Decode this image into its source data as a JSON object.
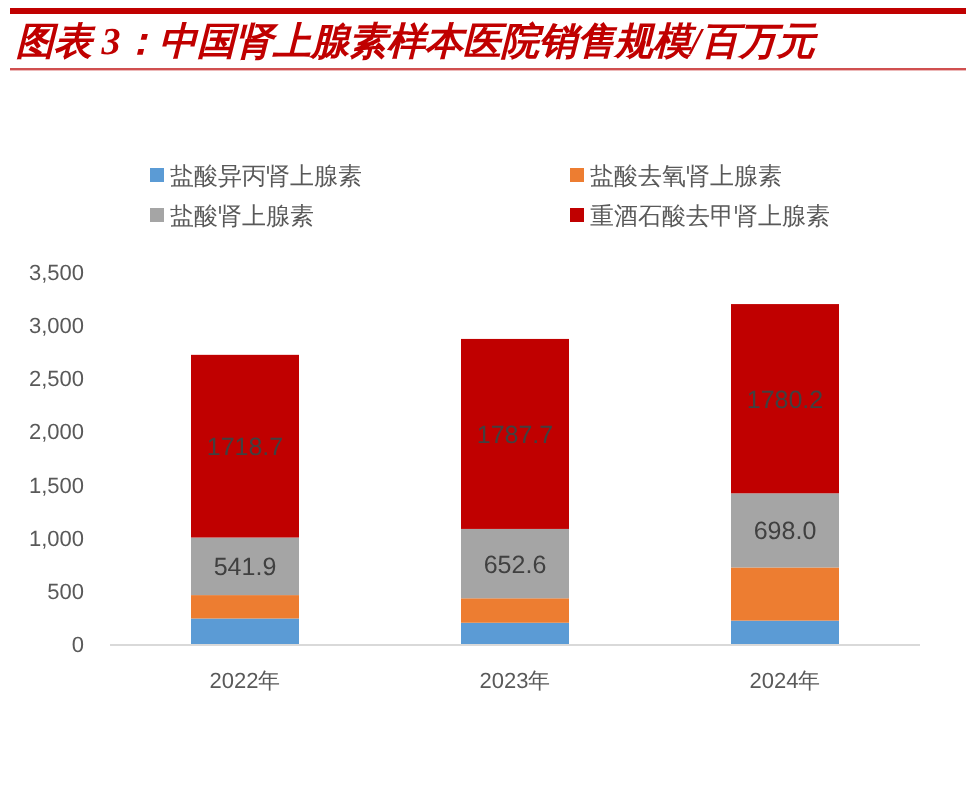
{
  "chart_data": {
    "type": "bar",
    "stacked": true,
    "title": "图表 3：中国肾上腺素样本医院销售规模/百万元",
    "categories": [
      "2022年",
      "2023年",
      "2024年"
    ],
    "series": [
      {
        "name": "盐酸异丙肾上腺素",
        "color": "#5b9bd5",
        "values": [
          240,
          200,
          220
        ]
      },
      {
        "name": "盐酸去氧肾上腺素",
        "color": "#ed7d31",
        "values": [
          220,
          230,
          500
        ]
      },
      {
        "name": "盐酸肾上腺素",
        "color": "#a5a5a5",
        "values": [
          541.9,
          652.6,
          698.0
        ],
        "value_labels": [
          "541.9",
          "652.6",
          "698.0"
        ]
      },
      {
        "name": "重酒石酸去甲肾上腺素",
        "color": "#c00000",
        "values": [
          1718.7,
          1787.7,
          1780.2
        ],
        "value_labels": [
          "1718.7",
          "1787.7",
          "1780.2"
        ]
      }
    ],
    "ylim": [
      0,
      3500
    ],
    "yticks": [
      0,
      {
        "value": 500,
        "label": "500"
      },
      {
        "value": 1000,
        "label": "1,000"
      },
      {
        "value": 1500,
        "label": "1,500"
      },
      {
        "value": 2000,
        "label": "2,000"
      },
      {
        "value": 2500,
        "label": "2,500"
      },
      {
        "value": 3000,
        "label": "3,000"
      },
      {
        "value": 3500,
        "label": "3,500"
      }
    ],
    "legend": "top",
    "grid": false
  }
}
